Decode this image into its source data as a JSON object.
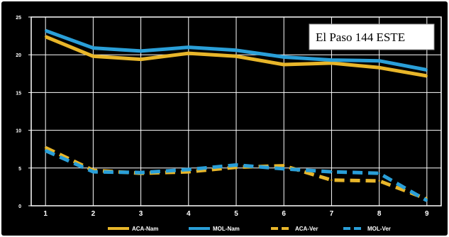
{
  "chart_data": {
    "type": "line",
    "title": "El Paso 144  ESTE",
    "x": [
      1,
      2,
      3,
      4,
      5,
      6,
      7,
      8,
      9
    ],
    "xlim": [
      0.7,
      9.3
    ],
    "ylim": [
      0,
      25
    ],
    "yticks": [
      0,
      5,
      10,
      15,
      20,
      25
    ],
    "grid": "both",
    "legend": "bottom",
    "background": "#000000",
    "series": [
      {
        "name": "ACA-Nam",
        "style": "solid",
        "color": "#e8b62a",
        "values": [
          22.4,
          19.8,
          19.4,
          20.2,
          19.8,
          18.7,
          18.9,
          18.3,
          17.2
        ]
      },
      {
        "name": "MOL-Nam",
        "style": "solid",
        "color": "#2a9fd8",
        "values": [
          23.2,
          20.9,
          20.5,
          21.0,
          20.6,
          19.7,
          19.3,
          19.2,
          18.0
        ]
      },
      {
        "name": "ACA-Ver",
        "style": "dashed",
        "color": "#e8b62a",
        "values": [
          7.7,
          4.7,
          4.3,
          4.5,
          5.1,
          5.3,
          3.4,
          3.3,
          0.9
        ]
      },
      {
        "name": "MOL-Ver",
        "style": "dashed",
        "color": "#2a9fd8",
        "values": [
          7.3,
          4.5,
          4.4,
          4.8,
          5.4,
          4.9,
          4.5,
          4.3,
          0.7
        ]
      }
    ]
  }
}
